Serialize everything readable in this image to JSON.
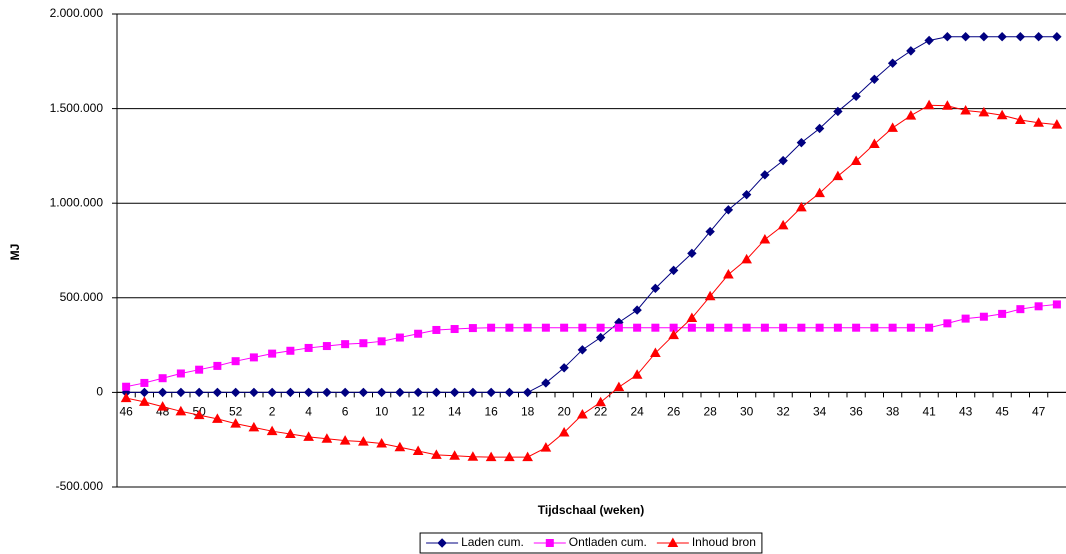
{
  "chart_data": {
    "type": "line",
    "x_label": "Tijdschaal (weken)",
    "y_label": "MJ",
    "categories": [
      "46",
      null,
      "48",
      null,
      "50",
      null,
      "52",
      null,
      "2",
      null,
      "4",
      null,
      "6",
      null,
      "10",
      null,
      "12",
      null,
      "14",
      null,
      "16",
      null,
      "18",
      null,
      "20",
      null,
      "22",
      null,
      "24",
      null,
      "26",
      null,
      "28",
      null,
      "30",
      null,
      "32",
      null,
      "34",
      null,
      "36",
      null,
      "38",
      null,
      "41",
      null,
      "43",
      null,
      "45",
      null,
      "47",
      null
    ],
    "series": [
      {
        "name": "Laden cum.",
        "color": "#000080",
        "marker": "diamond",
        "values": [
          0,
          0,
          0,
          0,
          0,
          0,
          0,
          0,
          0,
          0,
          0,
          0,
          0,
          0,
          0,
          0,
          0,
          0,
          0,
          0,
          0,
          0,
          0,
          50000,
          130000,
          225000,
          290000,
          370000,
          435000,
          550000,
          645000,
          735000,
          850000,
          965000,
          1045000,
          1150000,
          1225000,
          1320000,
          1395000,
          1485000,
          1565000,
          1655000,
          1740000,
          1805000,
          1860000,
          1880000,
          1880000,
          1880000,
          1880000,
          1880000,
          1880000,
          1880000
        ]
      },
      {
        "name": "Ontladen cum.",
        "color": "#ff00ff",
        "marker": "square",
        "values": [
          30000,
          50000,
          75000,
          100000,
          120000,
          140000,
          165000,
          185000,
          205000,
          220000,
          235000,
          245000,
          255000,
          260000,
          270000,
          290000,
          310000,
          330000,
          335000,
          340000,
          342000,
          342000,
          342000,
          342000,
          342000,
          342000,
          342000,
          342000,
          342000,
          342000,
          342000,
          342000,
          342000,
          342000,
          342000,
          342000,
          342000,
          342000,
          342000,
          342000,
          342000,
          342000,
          342000,
          342000,
          342000,
          365000,
          390000,
          400000,
          415000,
          440000,
          455000,
          465000
        ]
      },
      {
        "name": "Inhoud bron",
        "color": "#ff0000",
        "marker": "triangle",
        "values": [
          -30000,
          -50000,
          -75000,
          -100000,
          -120000,
          -140000,
          -165000,
          -185000,
          -205000,
          -220000,
          -235000,
          -245000,
          -255000,
          -260000,
          -270000,
          -290000,
          -310000,
          -330000,
          -335000,
          -340000,
          -342000,
          -342000,
          -342000,
          -292000,
          -212000,
          -117000,
          -52000,
          28000,
          93000,
          208000,
          303000,
          393000,
          508000,
          623000,
          703000,
          808000,
          883000,
          978000,
          1053000,
          1143000,
          1223000,
          1313000,
          1398000,
          1463000,
          1518000,
          1515000,
          1490000,
          1480000,
          1465000,
          1440000,
          1425000,
          1415000
        ]
      }
    ],
    "ylim": [
      -500000,
      2000000
    ],
    "yticks": [
      {
        "value": -500000,
        "label": "-500.000"
      },
      0,
      {
        "value": 500000,
        "label": "500.000"
      },
      {
        "value": 1000000,
        "label": "1.000.000"
      },
      {
        "value": 1500000,
        "label": "1.500.000"
      },
      {
        "value": 2000000,
        "label": "2.000.000"
      }
    ],
    "grid": true,
    "legend": "bottom"
  }
}
